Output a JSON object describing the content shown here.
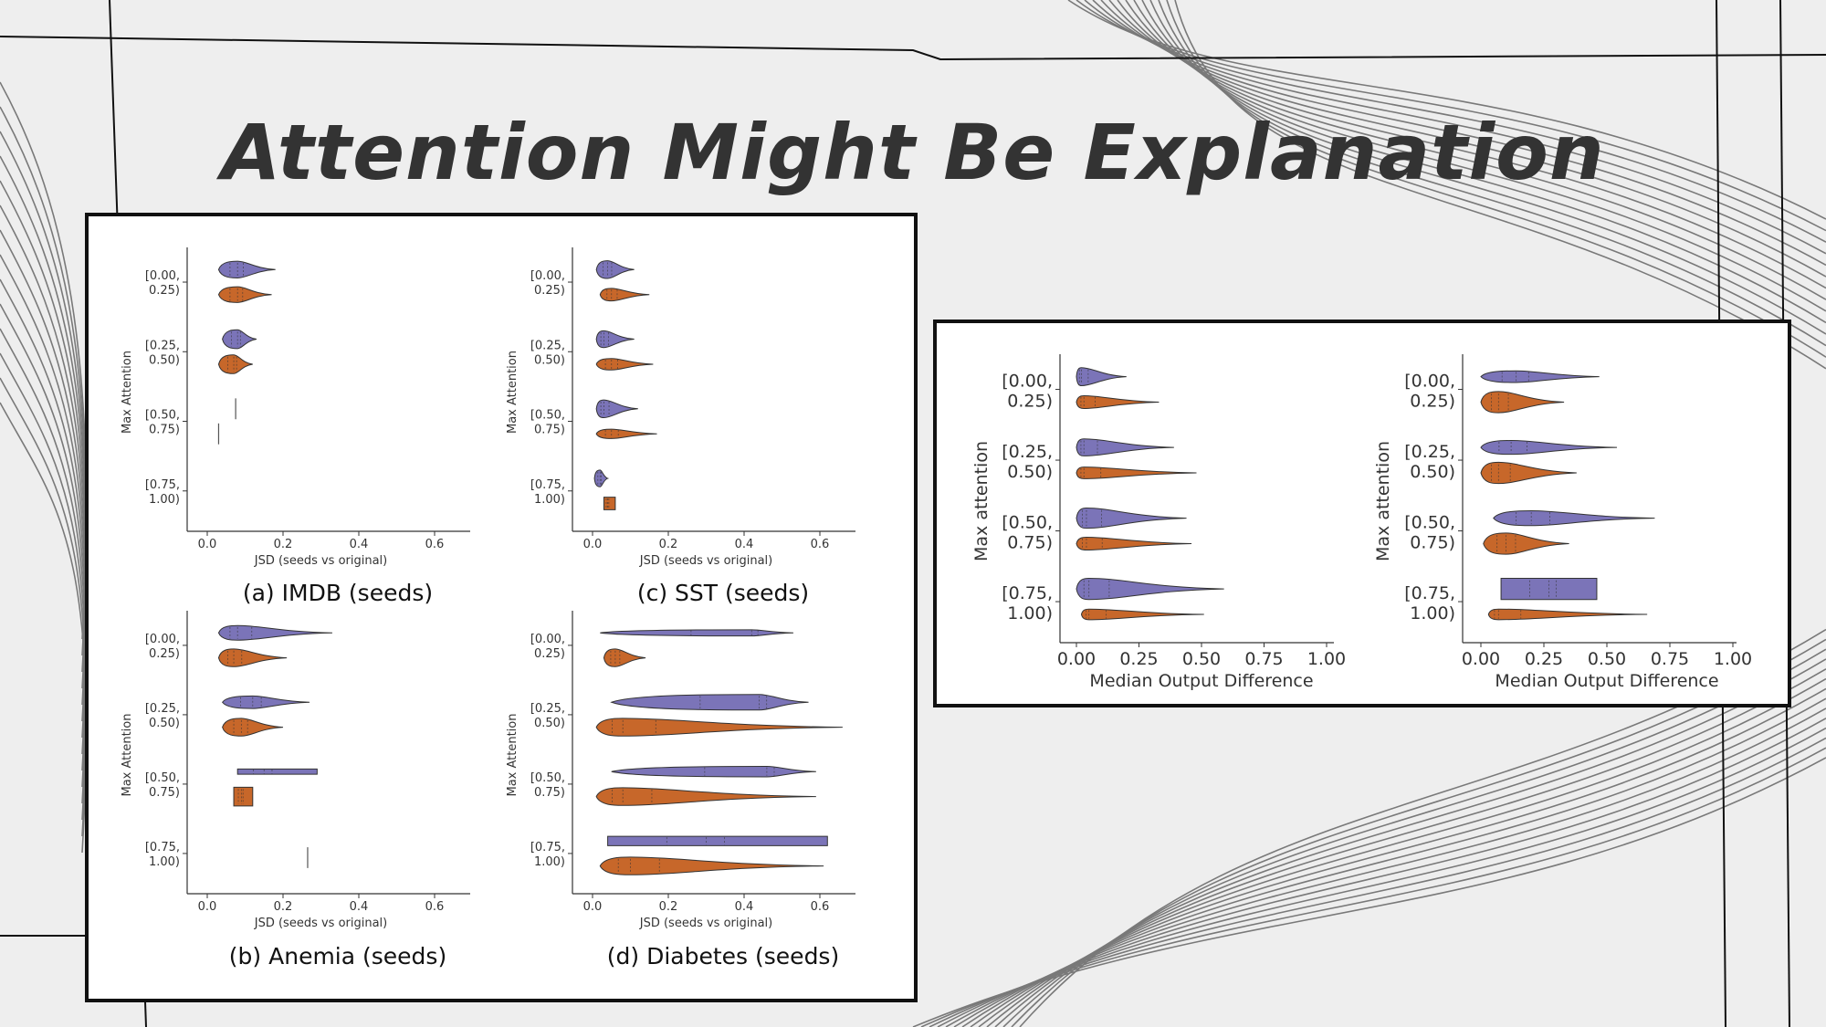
{
  "slide": {
    "title": "Attention Might Be Explanation"
  },
  "colors": {
    "purple": "#7b74b8",
    "orange": "#c7672a",
    "outline": "#333333"
  },
  "chart_data": [
    {
      "type": "violin",
      "caption": "(a) IMDB (seeds)",
      "xlabel": "JSD (seeds vs original)",
      "ylabel": "Max Attention",
      "xlim": [
        0,
        0.6
      ],
      "xticks": [
        "0.0",
        "0.2",
        "0.4",
        "0.6"
      ],
      "categories": [
        [
          "[0.00,",
          "0.25)"
        ],
        [
          "[0.25,",
          "0.50)"
        ],
        [
          "[0.50,",
          "0.75)"
        ],
        [
          "[0.75,",
          "1.00)"
        ]
      ],
      "groups": [
        [
          {
            "min": 0.03,
            "peak": 0.08,
            "max": 0.18,
            "width": 0.8
          },
          {
            "min": 0.03,
            "peak": 0.08,
            "max": 0.17,
            "width": 0.75
          }
        ],
        [
          {
            "min": 0.04,
            "peak": 0.08,
            "max": 0.13,
            "width": 0.9
          },
          {
            "min": 0.03,
            "peak": 0.07,
            "max": 0.12,
            "width": 0.9
          }
        ],
        [
          {
            "min": 0.075,
            "peak": 0.075,
            "max": 0.075,
            "width": 0.0,
            "line": true
          },
          {
            "min": 0.03,
            "peak": 0.03,
            "max": 0.03,
            "width": 0.0,
            "line": true
          }
        ],
        [
          null,
          null
        ]
      ]
    },
    {
      "type": "violin",
      "caption": "(b) Anemia (seeds)",
      "xlabel": "JSD (seeds vs original)",
      "ylabel": "Max Attention",
      "xlim": [
        0,
        0.6
      ],
      "xticks": [
        "0.0",
        "0.2",
        "0.4",
        "0.6"
      ],
      "categories": [
        [
          "[0.00,",
          "0.25)"
        ],
        [
          "[0.25,",
          "0.50)"
        ],
        [
          "[0.50,",
          "0.75)"
        ],
        [
          "[0.75,",
          "1.00)"
        ]
      ],
      "groups": [
        [
          {
            "min": 0.03,
            "peak": 0.08,
            "max": 0.33,
            "width": 0.7
          },
          {
            "min": 0.03,
            "peak": 0.07,
            "max": 0.21,
            "width": 0.85
          }
        ],
        [
          {
            "min": 0.04,
            "peak": 0.12,
            "max": 0.27,
            "width": 0.6
          },
          {
            "min": 0.04,
            "peak": 0.09,
            "max": 0.2,
            "width": 0.85
          }
        ],
        [
          {
            "min": 0.08,
            "peak": 0.15,
            "max": 0.29,
            "width": 0.25,
            "flat": true
          },
          {
            "min": 0.07,
            "peak": 0.09,
            "max": 0.12,
            "width": 0.9,
            "flat": true
          }
        ],
        [
          {
            "min": 0.265,
            "peak": 0.265,
            "max": 0.265,
            "width": 0.0,
            "line": true,
            "center": true
          },
          null
        ]
      ]
    },
    {
      "type": "violin",
      "caption": "(c) SST (seeds)",
      "xlabel": "JSD (seeds vs original)",
      "ylabel": "Max Attention",
      "xlim": [
        0,
        0.6
      ],
      "xticks": [
        "0.0",
        "0.2",
        "0.4",
        "0.6"
      ],
      "categories": [
        [
          "[0.00,",
          "0.25)"
        ],
        [
          "[0.25,",
          "0.50)"
        ],
        [
          "[0.50,",
          "0.75)"
        ],
        [
          "[0.75,",
          "1.00)"
        ]
      ],
      "groups": [
        [
          {
            "min": 0.01,
            "peak": 0.04,
            "max": 0.11,
            "width": 0.85
          },
          {
            "min": 0.02,
            "peak": 0.05,
            "max": 0.15,
            "width": 0.6
          }
        ],
        [
          {
            "min": 0.01,
            "peak": 0.03,
            "max": 0.11,
            "width": 0.8
          },
          {
            "min": 0.01,
            "peak": 0.05,
            "max": 0.16,
            "width": 0.55
          }
        ],
        [
          {
            "min": 0.01,
            "peak": 0.03,
            "max": 0.12,
            "width": 0.85
          },
          {
            "min": 0.01,
            "peak": 0.05,
            "max": 0.17,
            "width": 0.45
          }
        ],
        [
          {
            "min": 0.005,
            "peak": 0.02,
            "max": 0.04,
            "width": 0.8
          },
          {
            "min": 0.03,
            "peak": 0.04,
            "max": 0.06,
            "width": 0.6,
            "flat": true
          }
        ]
      ]
    },
    {
      "type": "violin",
      "caption": "(d) Diabetes (seeds)",
      "xlabel": "JSD (seeds vs original)",
      "ylabel": "Max Attention",
      "xlim": [
        0,
        0.6
      ],
      "xticks": [
        "0.0",
        "0.2",
        "0.4",
        "0.6"
      ],
      "categories": [
        [
          "[0.00,",
          "0.25)"
        ],
        [
          "[0.25,",
          "0.50)"
        ],
        [
          "[0.50,",
          "0.75)"
        ],
        [
          "[0.75,",
          "1.00)"
        ]
      ],
      "groups": [
        [
          {
            "min": 0.02,
            "peak": 0.42,
            "max": 0.53,
            "width": 0.3
          },
          {
            "min": 0.03,
            "peak": 0.06,
            "max": 0.14,
            "width": 0.85
          }
        ],
        [
          {
            "min": 0.05,
            "peak": 0.44,
            "max": 0.57,
            "width": 0.75
          },
          {
            "min": 0.01,
            "peak": 0.08,
            "max": 0.66,
            "width": 0.85
          }
        ],
        [
          {
            "min": 0.05,
            "peak": 0.46,
            "max": 0.59,
            "width": 0.5
          },
          {
            "min": 0.01,
            "peak": 0.08,
            "max": 0.59,
            "width": 0.85
          }
        ],
        [
          {
            "min": 0.04,
            "peak": 0.3,
            "max": 0.62,
            "width": 0.45,
            "flat": true
          },
          {
            "min": 0.02,
            "peak": 0.1,
            "max": 0.61,
            "width": 0.85
          }
        ]
      ]
    },
    {
      "type": "violin",
      "caption": "",
      "xlabel": "Median Output Difference",
      "ylabel": "Max attention",
      "xlim": [
        0,
        1.0
      ],
      "xticks": [
        "0.00",
        "0.25",
        "0.50",
        "0.75",
        "1.00"
      ],
      "categories": [
        [
          "[0.00,",
          "0.25)"
        ],
        [
          "[0.25,",
          "0.50)"
        ],
        [
          "[0.50,",
          "0.75)"
        ],
        [
          "[0.75,",
          "1.00)"
        ]
      ],
      "groups": [
        [
          {
            "min": 0.0,
            "peak": 0.02,
            "max": 0.2,
            "width": 0.85
          },
          {
            "min": 0.0,
            "peak": 0.03,
            "max": 0.33,
            "width": 0.6
          }
        ],
        [
          {
            "min": 0.0,
            "peak": 0.03,
            "max": 0.39,
            "width": 0.8
          },
          {
            "min": 0.0,
            "peak": 0.03,
            "max": 0.48,
            "width": 0.55
          }
        ],
        [
          {
            "min": 0.0,
            "peak": 0.04,
            "max": 0.44,
            "width": 0.95
          },
          {
            "min": 0.0,
            "peak": 0.04,
            "max": 0.46,
            "width": 0.6
          }
        ],
        [
          {
            "min": 0.0,
            "peak": 0.05,
            "max": 0.59,
            "width": 1.0
          },
          {
            "min": 0.02,
            "peak": 0.05,
            "max": 0.51,
            "width": 0.5
          }
        ]
      ]
    },
    {
      "type": "violin",
      "caption": "",
      "xlabel": "Median Output Difference",
      "ylabel": "Max attention",
      "xlim": [
        0,
        1.0
      ],
      "xticks": [
        "0.00",
        "0.25",
        "0.50",
        "0.75",
        "1.00"
      ],
      "categories": [
        [
          "[0.00,",
          "0.25)"
        ],
        [
          "[0.25,",
          "0.50)"
        ],
        [
          "[0.50,",
          "0.75)"
        ],
        [
          "[0.75,",
          "1.00)"
        ]
      ],
      "groups": [
        [
          {
            "min": 0.0,
            "peak": 0.14,
            "max": 0.47,
            "width": 0.55
          },
          {
            "min": 0.0,
            "peak": 0.07,
            "max": 0.33,
            "width": 1.0
          }
        ],
        [
          {
            "min": 0.0,
            "peak": 0.12,
            "max": 0.54,
            "width": 0.65
          },
          {
            "min": 0.0,
            "peak": 0.07,
            "max": 0.38,
            "width": 1.0
          }
        ],
        [
          {
            "min": 0.05,
            "peak": 0.2,
            "max": 0.69,
            "width": 0.7
          },
          {
            "min": 0.01,
            "peak": 0.1,
            "max": 0.35,
            "width": 1.0
          }
        ],
        [
          {
            "min": 0.08,
            "peak": 0.27,
            "max": 0.46,
            "width": 1.0,
            "flat": true
          },
          {
            "min": 0.03,
            "peak": 0.07,
            "max": 0.66,
            "width": 0.5
          }
        ]
      ]
    }
  ]
}
